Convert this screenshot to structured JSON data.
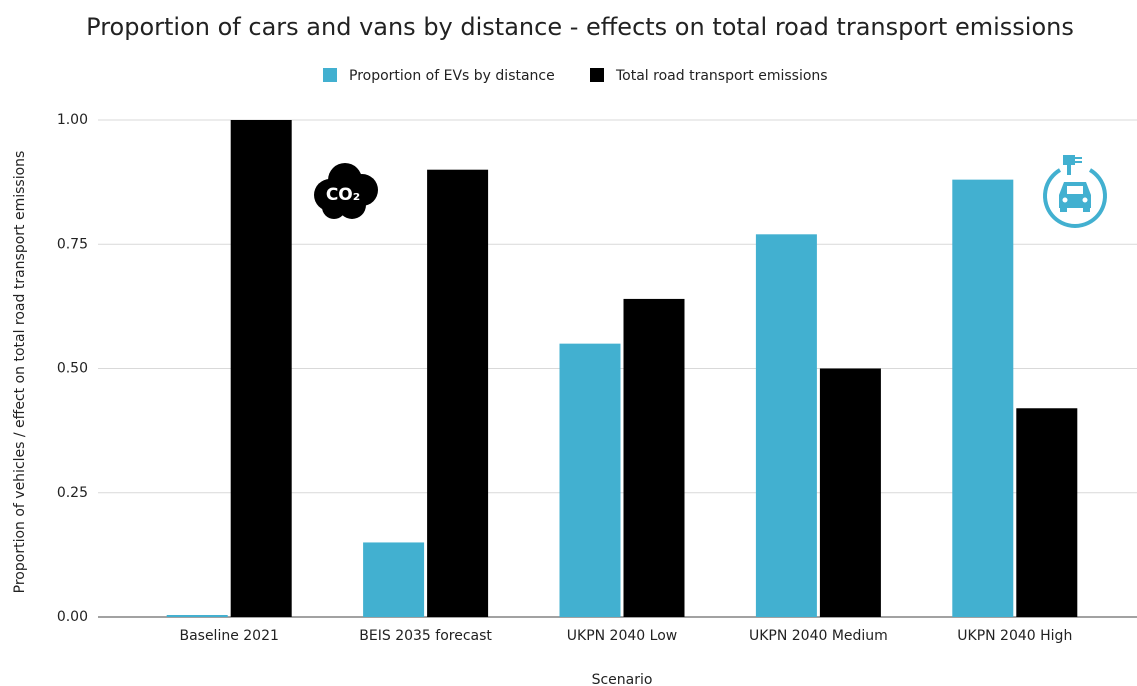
{
  "chart_data": {
    "type": "bar",
    "title": "Proportion of cars and vans by distance - effects on total road transport emissions",
    "x_label": "Scenario",
    "y_label": "Proportion of vehicles / effect on total road transport emissions",
    "categories": [
      "Baseline 2021",
      "BEIS 2035 forecast",
      "UKPN 2040 Low",
      "UKPN 2040 Medium",
      "UKPN 2040 High"
    ],
    "series": [
      {
        "name": "Proportion of EVs by distance",
        "color": "#42b0d0",
        "values": [
          0.004,
          0.15,
          0.55,
          0.77,
          0.88
        ]
      },
      {
        "name": "Total road transport emissions",
        "color": "#000000",
        "values": [
          1.0,
          0.9,
          0.64,
          0.5,
          0.42
        ]
      }
    ],
    "ylim": [
      0,
      1
    ],
    "yticks": [
      {
        "value": 0,
        "label": "0.00"
      },
      {
        "value": 0.25,
        "label": "0.25"
      },
      {
        "value": 0.5,
        "label": "0.50"
      },
      {
        "value": 0.75,
        "label": "0.75"
      },
      {
        "value": 1,
        "label": "1.00"
      }
    ],
    "grid": true,
    "legend": "top",
    "icon_label": "CO₂"
  }
}
